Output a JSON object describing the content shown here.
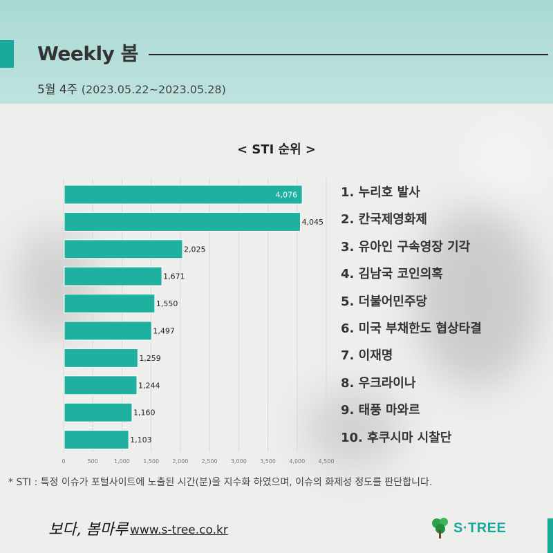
{
  "header": {
    "title": "Weekly 봄",
    "week": "5월 4주",
    "date_range": "(2023.05.22~2023.05.28)"
  },
  "chart_title": "< STI 순위 >",
  "chart_data": {
    "type": "bar",
    "orientation": "horizontal",
    "title": "< STI 순위 >",
    "categories": [
      "1. 누리호 발사",
      "2. 칸국제영화제",
      "3. 유아인 구속영장 기각",
      "4. 김남국 코인의혹",
      "5. 더불어민주당",
      "6. 미국 부채한도 협상타결",
      "7. 이재명",
      "8. 우크라이나",
      "9. 태풍 마와르",
      "10. 후쿠시마 시찰단"
    ],
    "values": [
      4076,
      4045,
      2025,
      1671,
      1550,
      1497,
      1259,
      1244,
      1160,
      1103
    ],
    "value_labels": [
      "4,076",
      "4,045",
      "2,025",
      "1,671",
      "1,550",
      "1,497",
      "1,259",
      "1,244",
      "1,160",
      "1,103"
    ],
    "xlim": [
      0,
      4500
    ],
    "x_ticks": [
      0,
      500,
      1000,
      1500,
      2000,
      2500,
      3000,
      3500,
      4000,
      4500
    ],
    "x_tick_labels": [
      "0",
      "500",
      "1,000",
      "1,500",
      "2,000",
      "2,500",
      "3,000",
      "3,500",
      "4,000",
      "4,500"
    ],
    "grid": true,
    "bar_color": "#20b09f"
  },
  "footnote": "* STI : 특정 이슈가 포털사이트에 노출된 시간(분)을 지수화 하였으며, 이슈의 화제성 정도를 판단합니다.",
  "footer": {
    "brand_script": "보다, 봄마루",
    "url": "www.s-tree.co.kr",
    "logo_text": "S·TREE"
  },
  "colors": {
    "accent": "#1aa89a",
    "header_band": "#b4dfda",
    "bar": "#20b09f"
  }
}
